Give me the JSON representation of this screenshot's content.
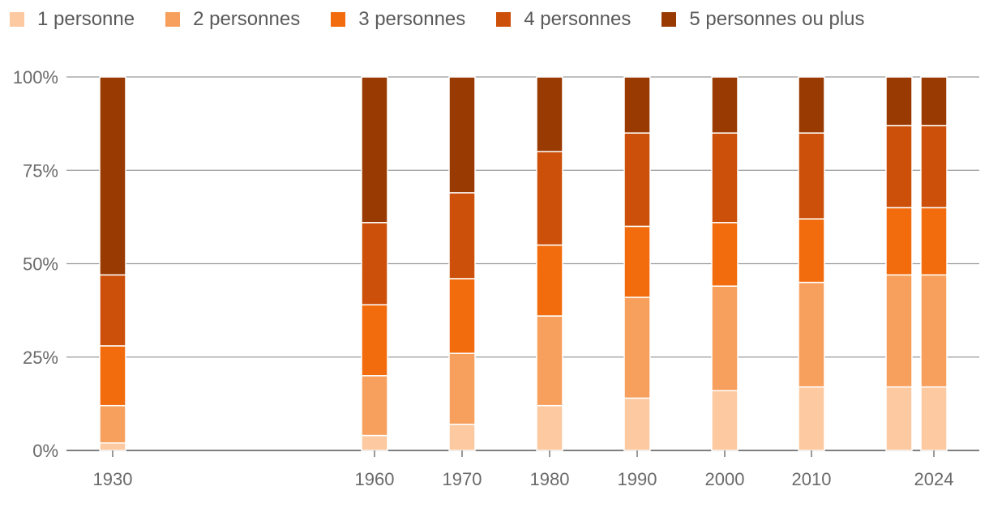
{
  "chart_data": {
    "type": "bar",
    "stacked": true,
    "title": "",
    "xlabel": "",
    "ylabel": "",
    "ylim": [
      0,
      100
    ],
    "y_ticks": [
      "0%",
      "25%",
      "50%",
      "75%",
      "100%"
    ],
    "x_tick_labels": [
      "1930",
      "1960",
      "1970",
      "1980",
      "1990",
      "2000",
      "2010",
      "2024"
    ],
    "grid": true,
    "legend_position": "top",
    "bars": [
      {
        "year": 1930,
        "label": "1930"
      },
      {
        "year": 1960,
        "label": "1960"
      },
      {
        "year": 1970,
        "label": "1970"
      },
      {
        "year": 1980,
        "label": "1980"
      },
      {
        "year": 1990,
        "label": "1990"
      },
      {
        "year": 2000,
        "label": "2000"
      },
      {
        "year": 2010,
        "label": "2010"
      },
      {
        "year": 2020,
        "label": ""
      },
      {
        "year": 2024,
        "label": "2024"
      }
    ],
    "series": [
      {
        "name": "1 personne",
        "color": "#fcc9a1",
        "values": [
          2,
          4,
          7,
          12,
          14,
          16,
          17,
          17,
          17
        ]
      },
      {
        "name": "2 personnes",
        "color": "#f7a05e",
        "values": [
          10,
          16,
          19,
          24,
          27,
          28,
          28,
          30,
          30
        ]
      },
      {
        "name": "3 personnes",
        "color": "#f26b0c",
        "values": [
          16,
          19,
          20,
          19,
          19,
          17,
          17,
          18,
          18
        ]
      },
      {
        "name": "4 personnes",
        "color": "#cc5009",
        "values": [
          19,
          22,
          23,
          25,
          25,
          24,
          23,
          22,
          22
        ]
      },
      {
        "name": "5 personnes ou plus",
        "color": "#993a02",
        "values": [
          53,
          39,
          31,
          20,
          15,
          15,
          15,
          13,
          13
        ]
      }
    ]
  }
}
